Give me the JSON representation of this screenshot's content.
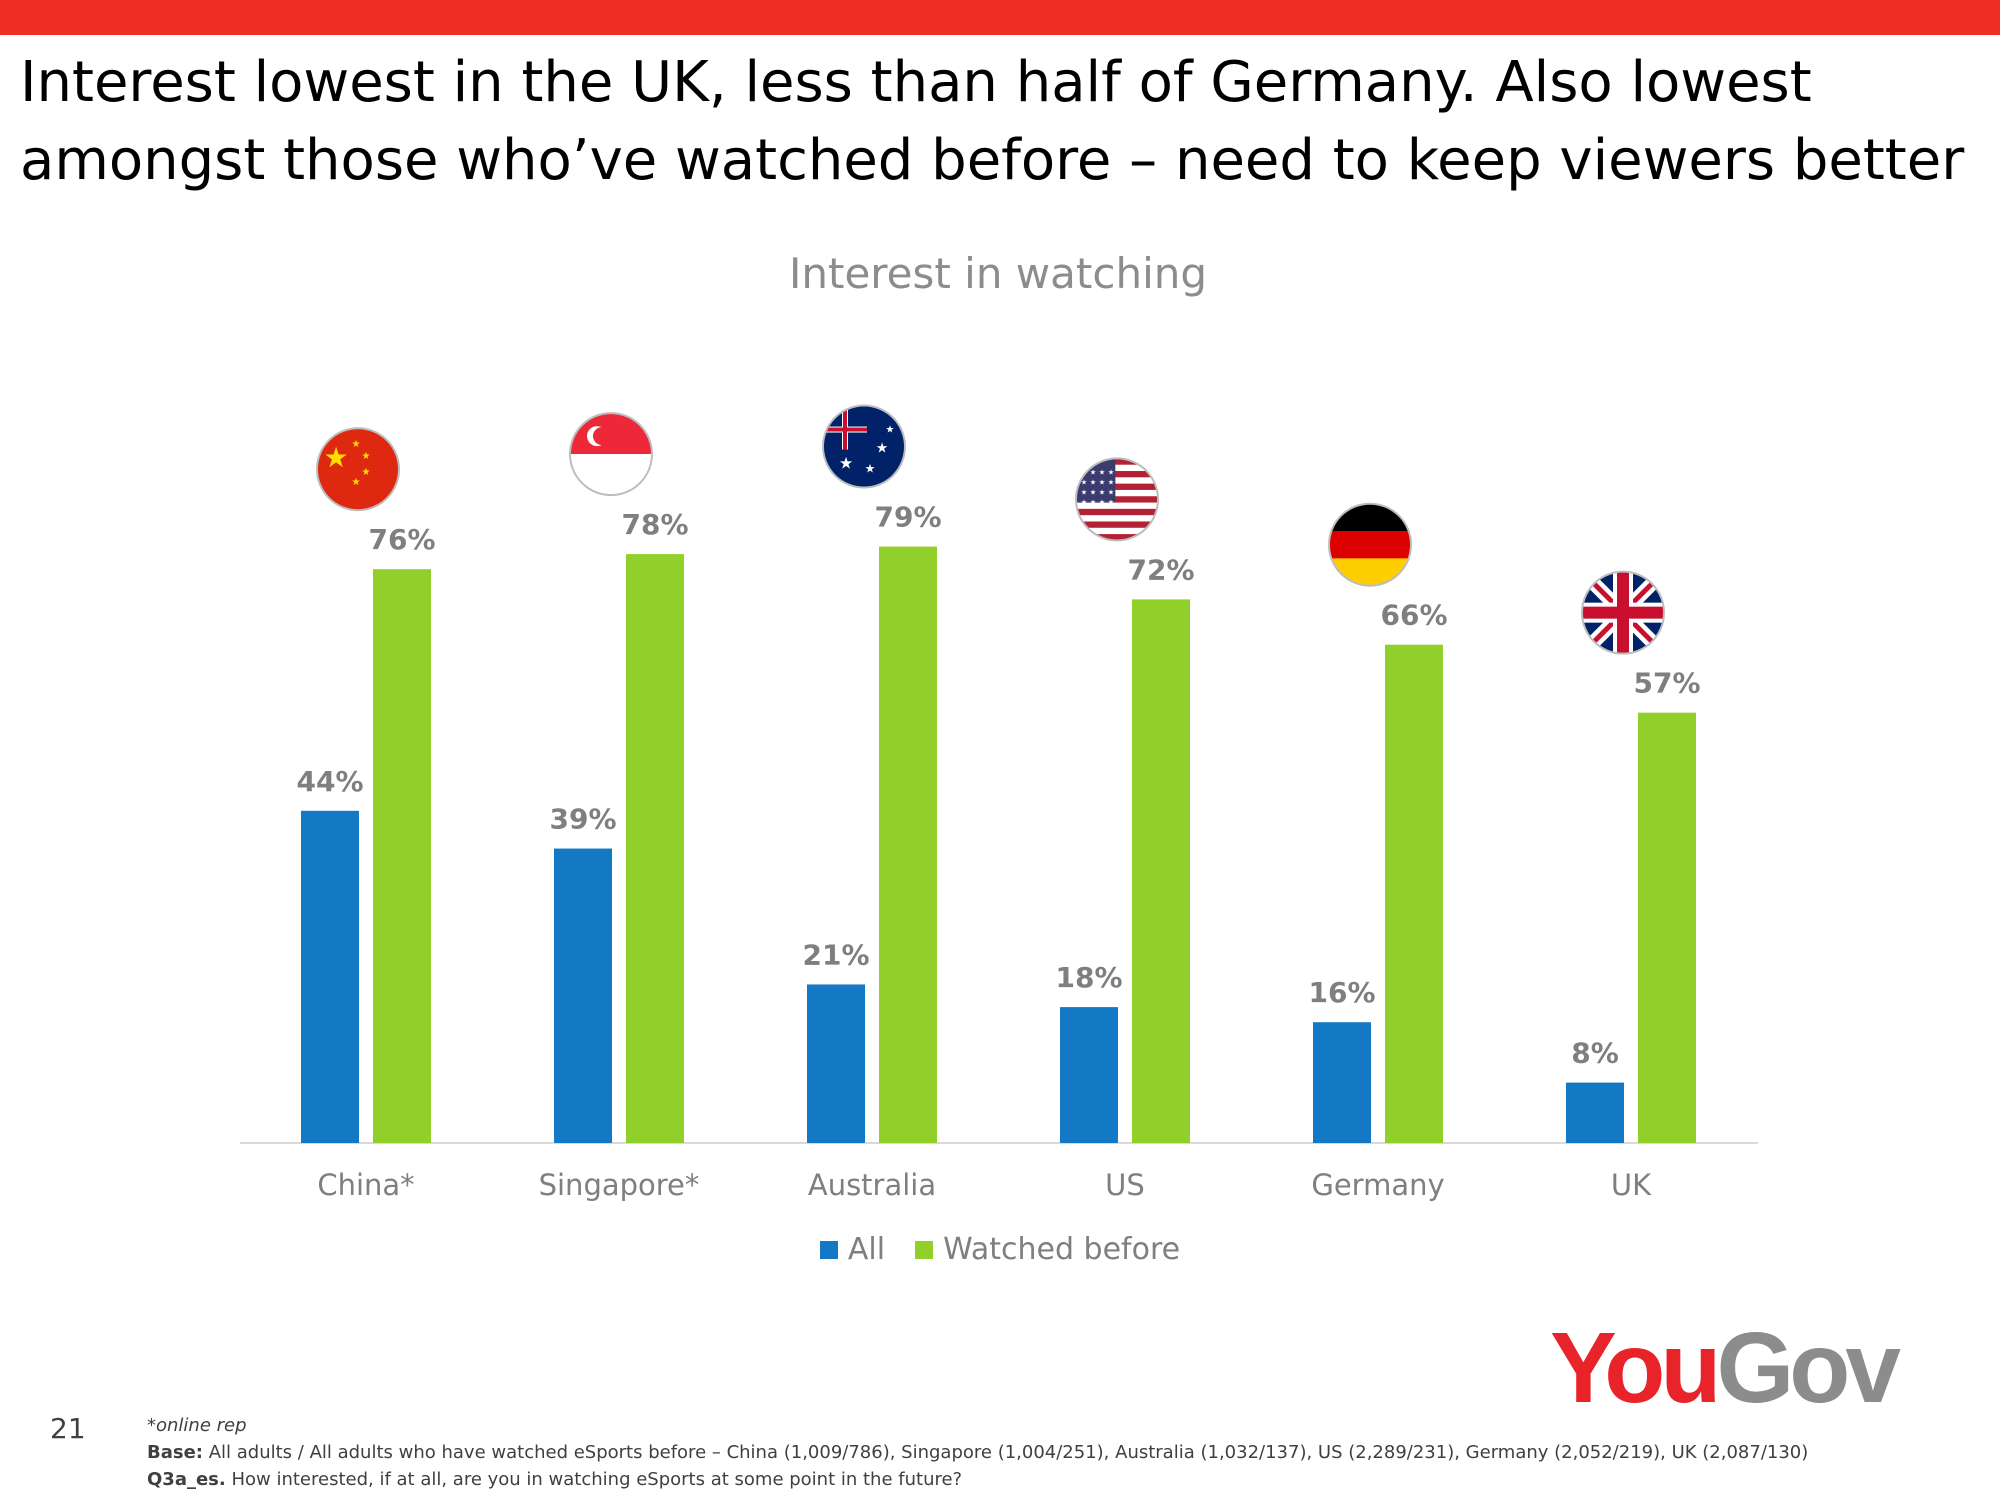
{
  "headline": {
    "line1": "Interest lowest in the UK, less than half of Germany. Also lowest",
    "line2": "amongst those who’ve watched before – need to keep viewers better"
  },
  "colors": {
    "topbar": "#ee2e24",
    "all": "#1479c4",
    "watched": "#91d02a",
    "axis_text": "#7f7f7f",
    "label_text": "#7f7f7f"
  },
  "chart_data": {
    "type": "bar",
    "title": "Interest in watching",
    "categories": [
      "China*",
      "Singapore*",
      "Australia",
      "US",
      "Germany",
      "UK"
    ],
    "flags": [
      "flag-china-icon",
      "flag-singapore-icon",
      "flag-australia-icon",
      "flag-us-icon",
      "flag-germany-icon",
      "flag-uk-icon"
    ],
    "series": [
      {
        "name": "All",
        "values": [
          44,
          39,
          21,
          18,
          16,
          8
        ],
        "labels": [
          "44%",
          "39%",
          "21%",
          "18%",
          "16%",
          "8%"
        ]
      },
      {
        "name": "Watched before",
        "values": [
          76,
          78,
          79,
          72,
          66,
          57
        ],
        "labels": [
          "76%",
          "78%",
          "79%",
          "72%",
          "66%",
          "57%"
        ]
      }
    ],
    "ylim": [
      0,
      100
    ],
    "grid": false,
    "legend_position": "bottom"
  },
  "logo": {
    "you": "You",
    "gov": "Gov"
  },
  "page_number": "21",
  "footnotes": {
    "online_rep": "*online rep",
    "base_label": "Base:",
    "base_text": " All adults / All adults who have watched eSports before – China (1,009/786), Singapore (1,004/251), Australia (1,032/137), US (2,289/231), Germany (2,052/219), UK (2,087/130)",
    "question_label": "Q3a_es.",
    "question_text": " How interested, if at all, are you in watching eSports at some point in the future?"
  }
}
